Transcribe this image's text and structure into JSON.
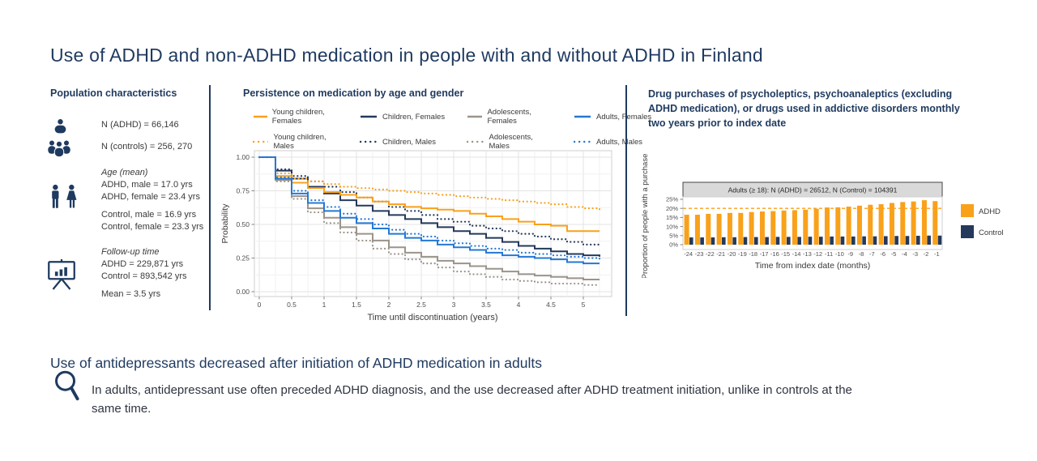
{
  "title": "Use of ADHD and non-ADHD medication in people with and without ADHD in Finland",
  "left_panel": {
    "heading": "Population characteristics",
    "n_adhd": "N (ADHD) = 66,146",
    "n_controls": "N (controls) = 256, 270",
    "age_heading": "Age (mean)",
    "age_adhd_male": "ADHD, male = 17.0 yrs",
    "age_adhd_female": "ADHD, female = 23.4 yrs",
    "age_control_male": "Control, male = 16.9 yrs",
    "age_control_female": "Control, female = 23.3 yrs",
    "followup_heading": "Follow-up time",
    "followup_adhd": "ADHD = 229,871 yrs",
    "followup_control": "Control = 893,542 yrs",
    "followup_mean": "Mean = 3.5 yrs"
  },
  "middle_panel": {
    "heading": "Persistence on medication by age and gender"
  },
  "right_panel": {
    "heading": "Drug purchases of psycholeptics, psychoanaleptics (excluding ADHD medication), or drugs used in addictive disorders monthly two years prior to index date"
  },
  "bottom": {
    "subtitle": "Use of antidepressants decreased after initiation of ADHD medication in adults",
    "body": "In adults, antidepressant use often preceded ADHD diagnosis, and the use decreased after ADHD treatment initiation, unlike in controls at the same time."
  },
  "colors": {
    "navy": "#1F3A5F",
    "orange": "#F9A11B",
    "series_navy": "#24395B",
    "series_gray": "#9B948A",
    "series_blue": "#2478D4",
    "axis_text": "#4D4D4D",
    "grid_major": "#E3E3E3",
    "grid_minor": "#F1F1F1",
    "panel_border": "#CFCFCF",
    "strip_bg": "#D9D9D9",
    "strip_border": "#454545"
  },
  "chart_data": [
    {
      "type": "line",
      "title": "Persistence on medication by age and gender",
      "xlabel": "Time until discontinuation (years)",
      "ylabel": "Probability",
      "xlim": [
        -0.08,
        5.45
      ],
      "ylim": [
        0,
        1.0
      ],
      "x_ticks": [
        {
          "label": "0",
          "value": 0
        },
        {
          "label": "0.5",
          "value": 0.5
        },
        {
          "label": "1",
          "value": 1
        },
        {
          "label": "1.5",
          "value": 1.5
        },
        {
          "label": "2",
          "value": 2
        },
        {
          "label": "2.5",
          "value": 2.5
        },
        {
          "label": "3",
          "value": 3
        },
        {
          "label": "3.5",
          "value": 3.5
        },
        {
          "label": "4",
          "value": 4
        },
        {
          "label": "4.5",
          "value": 4.5
        },
        {
          "label": "5",
          "value": 5
        }
      ],
      "y_ticks": [
        {
          "label": "0.00",
          "value": 0
        },
        {
          "label": "0.25",
          "value": 0.25
        },
        {
          "label": "0.50",
          "value": 0.5
        },
        {
          "label": "0.75",
          "value": 0.75
        },
        {
          "label": "1.00",
          "value": 1.0
        }
      ],
      "grid": true,
      "legend_position": "top",
      "x": [
        0,
        0.25,
        0.5,
        0.75,
        1,
        1.25,
        1.5,
        1.75,
        2,
        2.25,
        2.5,
        2.75,
        3,
        3.25,
        3.5,
        3.75,
        4,
        4.25,
        4.5,
        4.75,
        5,
        5.25
      ],
      "series": [
        {
          "name": "Young children, Females",
          "color": "#F9A11B",
          "style": "solid",
          "values": [
            1.0,
            0.86,
            0.81,
            0.77,
            0.74,
            0.72,
            0.7,
            0.67,
            0.65,
            0.63,
            0.62,
            0.61,
            0.6,
            0.58,
            0.56,
            0.54,
            0.52,
            0.5,
            0.49,
            0.45,
            0.45,
            0.45
          ]
        },
        {
          "name": "Children, Females",
          "color": "#24395B",
          "style": "solid",
          "values": [
            1.0,
            0.9,
            0.84,
            0.78,
            0.73,
            0.68,
            0.64,
            0.6,
            0.57,
            0.54,
            0.51,
            0.48,
            0.45,
            0.43,
            0.4,
            0.37,
            0.34,
            0.32,
            0.3,
            0.28,
            0.27,
            0.26
          ]
        },
        {
          "name": "Adolescents, Females",
          "color": "#9B948A",
          "style": "solid",
          "values": [
            1.0,
            0.83,
            0.71,
            0.62,
            0.55,
            0.48,
            0.43,
            0.38,
            0.33,
            0.29,
            0.26,
            0.23,
            0.21,
            0.19,
            0.17,
            0.15,
            0.13,
            0.12,
            0.11,
            0.1,
            0.09,
            0.09
          ]
        },
        {
          "name": "Adults, Females",
          "color": "#2478D4",
          "style": "solid",
          "values": [
            1.0,
            0.84,
            0.73,
            0.66,
            0.6,
            0.55,
            0.51,
            0.47,
            0.43,
            0.4,
            0.38,
            0.35,
            0.33,
            0.31,
            0.29,
            0.27,
            0.26,
            0.25,
            0.24,
            0.22,
            0.21,
            0.21
          ]
        },
        {
          "name": "Young children, Males",
          "color": "#F9A11B",
          "style": "dotted",
          "values": [
            1.0,
            0.88,
            0.84,
            0.82,
            0.8,
            0.78,
            0.77,
            0.76,
            0.75,
            0.74,
            0.73,
            0.72,
            0.71,
            0.7,
            0.69,
            0.68,
            0.67,
            0.66,
            0.65,
            0.63,
            0.62,
            0.61
          ]
        },
        {
          "name": "Children, Males",
          "color": "#24395B",
          "style": "dotted",
          "values": [
            1.0,
            0.91,
            0.86,
            0.82,
            0.78,
            0.74,
            0.7,
            0.67,
            0.63,
            0.6,
            0.57,
            0.54,
            0.52,
            0.49,
            0.47,
            0.45,
            0.43,
            0.41,
            0.39,
            0.37,
            0.35,
            0.34
          ]
        },
        {
          "name": "Adolescents, Males",
          "color": "#9B948A",
          "style": "dotted",
          "values": [
            1.0,
            0.82,
            0.69,
            0.59,
            0.51,
            0.44,
            0.38,
            0.32,
            0.28,
            0.24,
            0.21,
            0.18,
            0.15,
            0.13,
            0.11,
            0.09,
            0.08,
            0.07,
            0.06,
            0.06,
            0.05,
            0.05
          ]
        },
        {
          "name": "Adults, Males",
          "color": "#2478D4",
          "style": "dotted",
          "values": [
            1.0,
            0.85,
            0.75,
            0.68,
            0.63,
            0.58,
            0.54,
            0.5,
            0.46,
            0.43,
            0.41,
            0.38,
            0.36,
            0.34,
            0.32,
            0.31,
            0.29,
            0.28,
            0.27,
            0.26,
            0.25,
            0.24
          ]
        }
      ]
    },
    {
      "type": "bar",
      "strip_label": "Adults (≥ 18): N (ADHD) = 26512, N (Control) = 104391",
      "xlabel": "Time from index date (months)",
      "ylabel": "Proportion of people with a purchase",
      "ylim": [
        0,
        27
      ],
      "y_ticks": [
        {
          "label": "0%",
          "value": 0
        },
        {
          "label": "5%",
          "value": 5
        },
        {
          "label": "10%",
          "value": 10
        },
        {
          "label": "15%",
          "value": 15
        },
        {
          "label": "20%",
          "value": 20
        },
        {
          "label": "25%",
          "value": 25
        }
      ],
      "categories": [
        "-24",
        "-23",
        "-22",
        "-21",
        "-20",
        "-19",
        "-18",
        "-17",
        "-16",
        "-15",
        "-14",
        "-13",
        "-12",
        "-11",
        "-10",
        "-9",
        "-8",
        "-7",
        "-6",
        "-5",
        "-4",
        "-3",
        "-2",
        "-1"
      ],
      "series": [
        {
          "name": "ADHD",
          "color": "#F9A11B",
          "values": [
            16.5,
            16.5,
            17.0,
            17.0,
            17.5,
            17.5,
            18.0,
            18.3,
            18.5,
            18.8,
            19.0,
            19.3,
            19.8,
            20.5,
            20.6,
            21.0,
            21.5,
            22.0,
            22.3,
            23.0,
            23.5,
            23.8,
            24.5,
            24.0
          ]
        },
        {
          "name": "Control",
          "color": "#24395B",
          "values": [
            4.0,
            4.0,
            4.0,
            4.1,
            4.1,
            4.2,
            4.2,
            4.2,
            4.3,
            4.3,
            4.3,
            4.4,
            4.4,
            4.5,
            4.5,
            4.5,
            4.6,
            4.6,
            4.7,
            4.8,
            4.8,
            4.9,
            5.0,
            5.0
          ]
        }
      ],
      "reference_line": {
        "value": 20,
        "style": "dashed",
        "color": "#F9A11B"
      },
      "legend_position": "right"
    }
  ]
}
